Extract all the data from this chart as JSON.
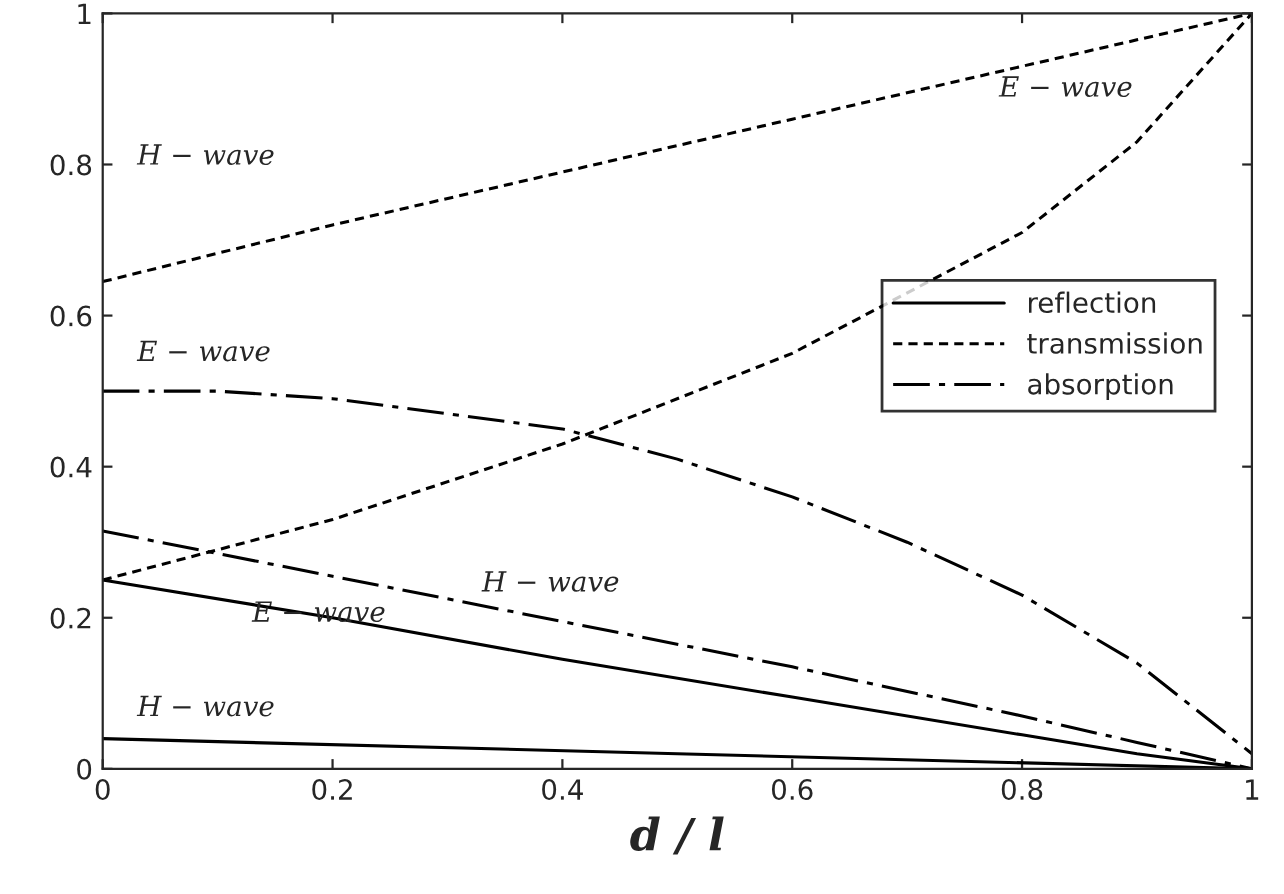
{
  "chart_data": {
    "type": "line",
    "xlabel": "d / l",
    "xlim": [
      0,
      1
    ],
    "ylim": [
      0,
      1
    ],
    "xticks": [
      0,
      0.2,
      0.4,
      0.6,
      0.8,
      1
    ],
    "yticks": [
      0,
      0.2,
      0.4,
      0.6,
      0.8,
      1
    ],
    "grid": false,
    "legend": "right",
    "marker": "none",
    "series": [
      {
        "name": "reflection",
        "color": "#000000",
        "line_style": "solid",
        "x": [
          0,
          0.2,
          0.4,
          0.6,
          0.8,
          0.9,
          1
        ],
        "values": [
          0.25,
          0.2,
          0.145,
          0.095,
          0.045,
          0.02,
          0
        ]
      },
      {
        "name": "transmission",
        "color": "#000000",
        "line_style": "dotted",
        "x": [
          0,
          0.2,
          0.4,
          0.6,
          0.8,
          0.9,
          1
        ],
        "values": [
          0.645,
          0.72,
          0.79,
          0.86,
          0.93,
          0.965,
          1
        ]
      },
      {
        "name": "absorption",
        "color": "#000000",
        "line_style": "dashed",
        "x": [
          0,
          0.1,
          0.2,
          0.3,
          0.4,
          0.5,
          0.6,
          0.7,
          0.8,
          0.9,
          0.95,
          1
        ],
        "values": [
          0.5,
          0.5,
          0.49,
          0.47,
          0.45,
          0.41,
          0.36,
          0.3,
          0.23,
          0.14,
          0.08,
          0.02
        ]
      },
      {
        "color": "#000000",
        "line_style": "solid",
        "x": [
          0,
          0.5,
          1
        ],
        "values": [
          0.04,
          0.02,
          0
        ]
      },
      {
        "color": "#000000",
        "line_style": "dotted",
        "x": [
          0,
          0.2,
          0.4,
          0.6,
          0.8,
          0.9,
          1
        ],
        "values": [
          0.25,
          0.33,
          0.43,
          0.55,
          0.71,
          0.83,
          1
        ]
      },
      {
        "color": "#000000",
        "line_style": "dashed",
        "x": [
          0,
          0.2,
          0.4,
          0.6,
          0.8,
          0.9,
          1
        ],
        "values": [
          0.315,
          0.255,
          0.195,
          0.135,
          0.07,
          0.035,
          0
        ]
      }
    ],
    "annotations": [
      "H − wave",
      "E − wave",
      "E − wave",
      "H − wave",
      "E − wave",
      "H − wave"
    ]
  }
}
